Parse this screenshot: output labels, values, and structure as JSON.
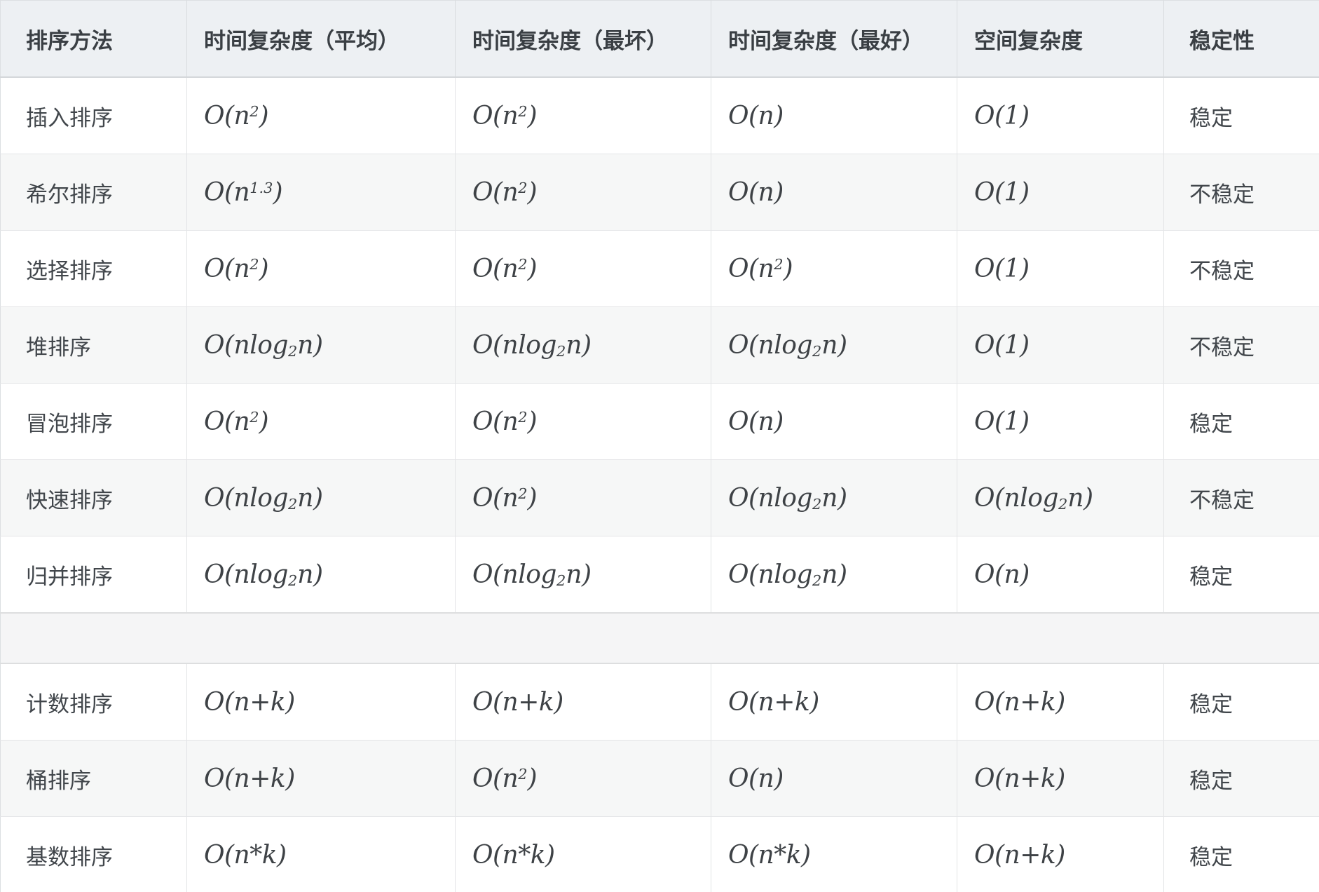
{
  "colors": {
    "header_background": "#edf0f3",
    "stripe_background": "#f6f7f7",
    "separator_background": "#f5f5f6",
    "border": "#dcdfe2",
    "text": "#41464b"
  },
  "table": {
    "columns": [
      {
        "label": "排序方法"
      },
      {
        "label": "时间复杂度（平均）"
      },
      {
        "label": "时间复杂度（最坏）"
      },
      {
        "label": "时间复杂度（最好）"
      },
      {
        "label": "空间复杂度"
      },
      {
        "label": "稳定性"
      }
    ],
    "rows": [
      {
        "method": "插入排序",
        "avg": "O(n^{2})",
        "worst": "O(n^{2})",
        "best": "O(n)",
        "space": "O(1)",
        "stability": "稳定"
      },
      {
        "method": "希尔排序",
        "avg": "O(n^{1.3})",
        "worst": "O(n^{2})",
        "best": "O(n)",
        "space": "O(1)",
        "stability": "不稳定"
      },
      {
        "method": "选择排序",
        "avg": "O(n^{2})",
        "worst": "O(n^{2})",
        "best": "O(n^{2})",
        "space": "O(1)",
        "stability": "不稳定"
      },
      {
        "method": "堆排序",
        "avg": "O(nlog_{2}n)",
        "worst": "O(nlog_{2}n)",
        "best": "O(nlog_{2}n)",
        "space": "O(1)",
        "stability": "不稳定"
      },
      {
        "method": "冒泡排序",
        "avg": "O(n^{2})",
        "worst": "O(n^{2})",
        "best": "O(n)",
        "space": "O(1)",
        "stability": "稳定"
      },
      {
        "method": "快速排序",
        "avg": "O(nlog_{2}n)",
        "worst": "O(n^{2})",
        "best": "O(nlog_{2}n)",
        "space": "O(nlog_{2}n)",
        "stability": "不稳定"
      },
      {
        "method": "归并排序",
        "avg": "O(nlog_{2}n)",
        "worst": "O(nlog_{2}n)",
        "best": "O(nlog_{2}n)",
        "space": "O(n)",
        "stability": "稳定"
      },
      {
        "method": "计数排序",
        "avg": "O(n+k)",
        "worst": "O(n+k)",
        "best": "O(n+k)",
        "space": "O(n+k)",
        "stability": "稳定"
      },
      {
        "method": "桶排序",
        "avg": "O(n+k)",
        "worst": "O(n^{2})",
        "best": "O(n)",
        "space": "O(n+k)",
        "stability": "稳定"
      },
      {
        "method": "基数排序",
        "avg": "O(n*k)",
        "worst": "O(n*k)",
        "best": "O(n*k)",
        "space": "O(n+k)",
        "stability": "稳定"
      }
    ]
  },
  "chart_data": {
    "type": "table",
    "columns": [
      "排序方法",
      "时间复杂度（平均）",
      "时间复杂度（最坏）",
      "时间复杂度（最好）",
      "空间复杂度",
      "稳定性"
    ],
    "rows": [
      [
        "插入排序",
        "O(n^2)",
        "O(n^2)",
        "O(n)",
        "O(1)",
        "稳定"
      ],
      [
        "希尔排序",
        "O(n^1.3)",
        "O(n^2)",
        "O(n)",
        "O(1)",
        "不稳定"
      ],
      [
        "选择排序",
        "O(n^2)",
        "O(n^2)",
        "O(n^2)",
        "O(1)",
        "不稳定"
      ],
      [
        "堆排序",
        "O(nlog2n)",
        "O(nlog2n)",
        "O(nlog2n)",
        "O(1)",
        "不稳定"
      ],
      [
        "冒泡排序",
        "O(n^2)",
        "O(n^2)",
        "O(n)",
        "O(1)",
        "稳定"
      ],
      [
        "快速排序",
        "O(nlog2n)",
        "O(n^2)",
        "O(nlog2n)",
        "O(nlog2n)",
        "不稳定"
      ],
      [
        "归并排序",
        "O(nlog2n)",
        "O(nlog2n)",
        "O(nlog2n)",
        "O(n)",
        "稳定"
      ],
      [
        "计数排序",
        "O(n+k)",
        "O(n+k)",
        "O(n+k)",
        "O(n+k)",
        "稳定"
      ],
      [
        "桶排序",
        "O(n+k)",
        "O(n^2)",
        "O(n)",
        "O(n+k)",
        "稳定"
      ],
      [
        "基数排序",
        "O(n*k)",
        "O(n*k)",
        "O(n*k)",
        "O(n+k)",
        "稳定"
      ]
    ]
  }
}
